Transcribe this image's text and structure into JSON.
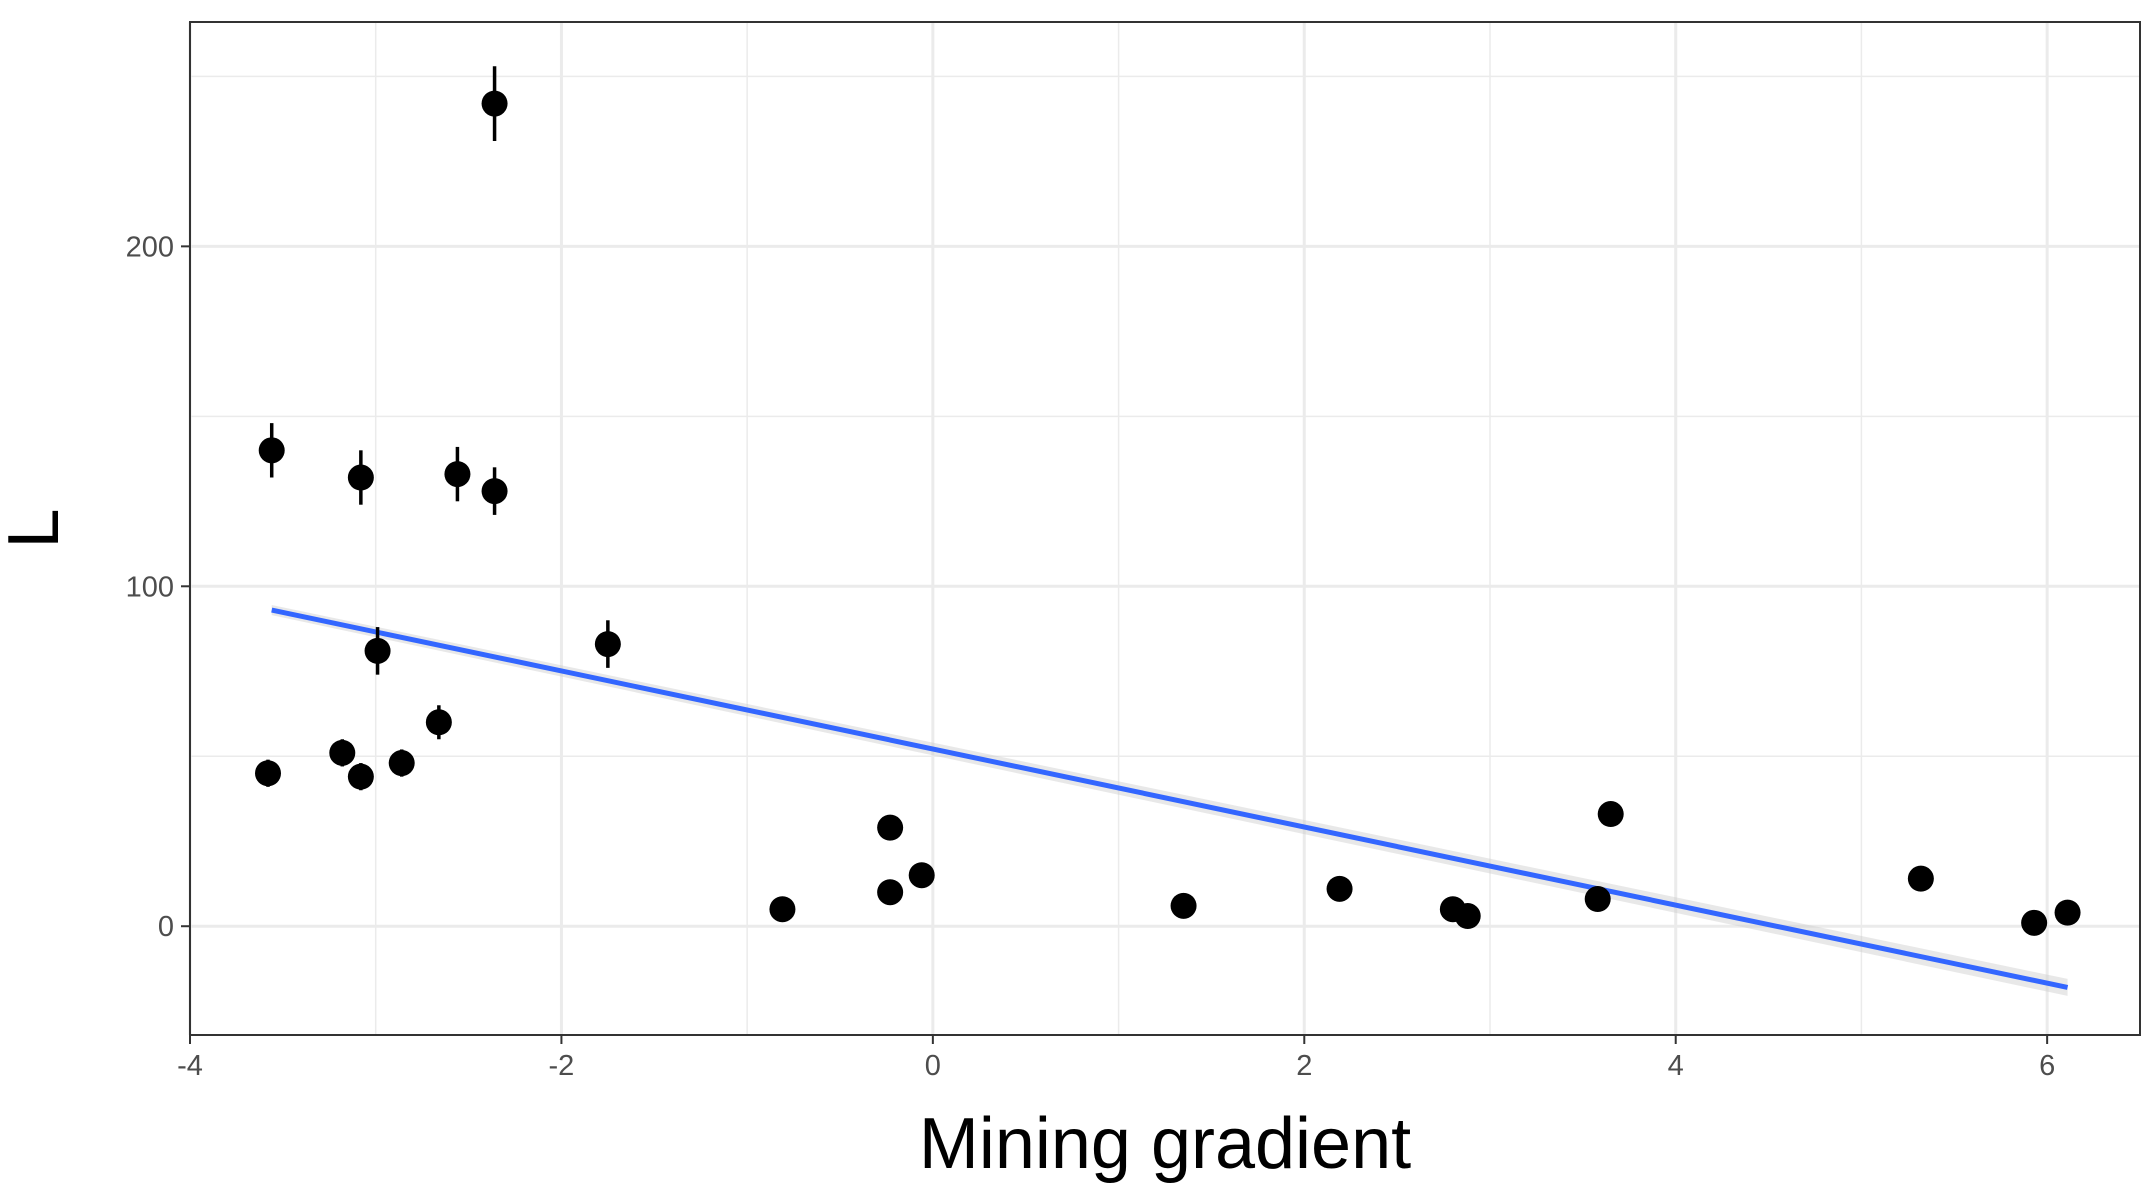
{
  "chart_data": {
    "type": "scatter",
    "title": "",
    "xlabel": "Mining gradient",
    "ylabel": "L",
    "xlim": [
      -4.0,
      6.5
    ],
    "ylim": [
      -32,
      266
    ],
    "x_ticks": [
      -4,
      -2,
      0,
      2,
      4,
      6
    ],
    "x_tick_labels": [
      "-4",
      "-2",
      "0",
      "2",
      "4",
      "6"
    ],
    "y_ticks": [
      0,
      100,
      200
    ],
    "y_tick_labels": [
      "0",
      "100",
      "200"
    ],
    "x_minor_ticks": [
      -3,
      -1,
      1,
      3,
      5
    ],
    "y_minor_ticks": [
      50,
      150,
      250
    ],
    "grid": true,
    "legend": "none",
    "colors": {
      "points": "#000000",
      "trend": "#3366ff",
      "band": "#cccccc",
      "grid": "#ebebeb",
      "panel_border": "#333333"
    },
    "points": [
      {
        "x": -3.56,
        "y": 140,
        "err_lo": 132,
        "err_hi": 148
      },
      {
        "x": -3.58,
        "y": 45,
        "err_lo": 41,
        "err_hi": 49
      },
      {
        "x": -3.18,
        "y": 51,
        "err_lo": 47,
        "err_hi": 55
      },
      {
        "x": -3.08,
        "y": 44,
        "err_lo": 40,
        "err_hi": 48
      },
      {
        "x": -3.08,
        "y": 132,
        "err_lo": 124,
        "err_hi": 140
      },
      {
        "x": -2.99,
        "y": 81,
        "err_lo": 74,
        "err_hi": 88
      },
      {
        "x": -2.86,
        "y": 48,
        "err_lo": 44,
        "err_hi": 52
      },
      {
        "x": -2.66,
        "y": 60,
        "err_lo": 55,
        "err_hi": 65
      },
      {
        "x": -2.56,
        "y": 133,
        "err_lo": 125,
        "err_hi": 141
      },
      {
        "x": -2.36,
        "y": 242,
        "err_lo": 231,
        "err_hi": 253
      },
      {
        "x": -2.36,
        "y": 128,
        "err_lo": 121,
        "err_hi": 135
      },
      {
        "x": -1.75,
        "y": 83,
        "err_lo": 76,
        "err_hi": 90
      },
      {
        "x": -0.81,
        "y": 5
      },
      {
        "x": -0.23,
        "y": 29
      },
      {
        "x": -0.23,
        "y": 10
      },
      {
        "x": -0.06,
        "y": 15
      },
      {
        "x": 1.35,
        "y": 6
      },
      {
        "x": 2.19,
        "y": 11
      },
      {
        "x": 2.8,
        "y": 5
      },
      {
        "x": 2.88,
        "y": 3
      },
      {
        "x": 3.58,
        "y": 8
      },
      {
        "x": 3.65,
        "y": 33
      },
      {
        "x": 5.32,
        "y": 14
      },
      {
        "x": 5.93,
        "y": 1
      },
      {
        "x": 6.11,
        "y": 4
      }
    ],
    "trend_line": {
      "method": "linear",
      "x": [
        -3.56,
        6.11
      ],
      "y": [
        93,
        -18
      ]
    }
  }
}
